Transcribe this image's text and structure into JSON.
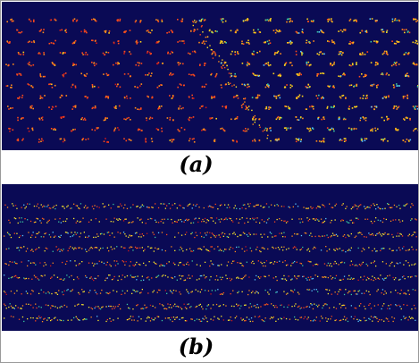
{
  "figure": {
    "panels": [
      {
        "id": "a",
        "label": "(a)",
        "background": "#0a0a55"
      },
      {
        "id": "b",
        "label": "(b)",
        "background": "#0a0a55"
      }
    ],
    "colors": {
      "particle_palette": [
        "#ff4a1a",
        "#ff8c1a",
        "#ffd21a",
        "#ffea2a",
        "#d01a1a",
        "#3ac8a0",
        "#58c8ff"
      ],
      "border": "#9a9a9a"
    }
  }
}
